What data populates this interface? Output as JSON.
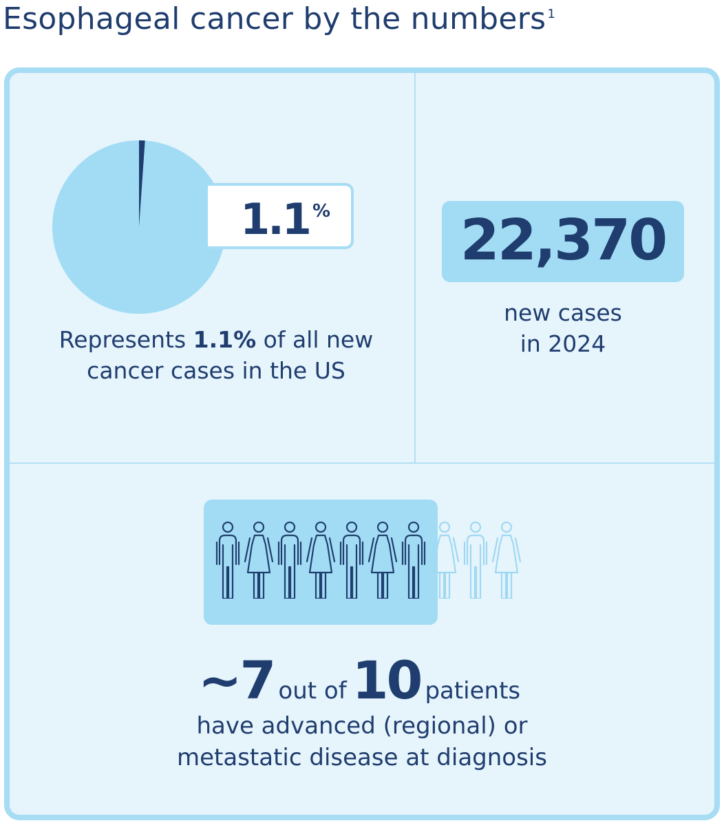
{
  "title": {
    "text": "Esophageal cancer by the numbers",
    "footnote": "1"
  },
  "colors": {
    "navy": "#1f3d6e",
    "light_blue": "#a2dcf4",
    "card_bg": "#e6f4fc",
    "border": "#a6dcf4"
  },
  "pie": {
    "value_percent": 1.1,
    "display": "1.1",
    "unit": "%"
  },
  "left_caption": {
    "before": "Represents ",
    "bold": "1.1%",
    "after": " of all new cancer cases in the US"
  },
  "new_cases": {
    "value": "22,370",
    "caption_line1": "new cases",
    "caption_line2": "in 2024"
  },
  "patients": {
    "approx": "~7",
    "connector": "out of",
    "total": "10",
    "suffix": "patients",
    "caption_line1": "have advanced (regional) or",
    "caption_line2": "metastatic disease at diagnosis",
    "highlighted_count": 7,
    "total_count": 10,
    "figure_icons": [
      "man-icon",
      "woman-icon",
      "man-icon",
      "woman-icon",
      "man-icon",
      "woman-icon",
      "man-icon",
      "woman-icon",
      "man-icon",
      "woman-icon"
    ]
  }
}
